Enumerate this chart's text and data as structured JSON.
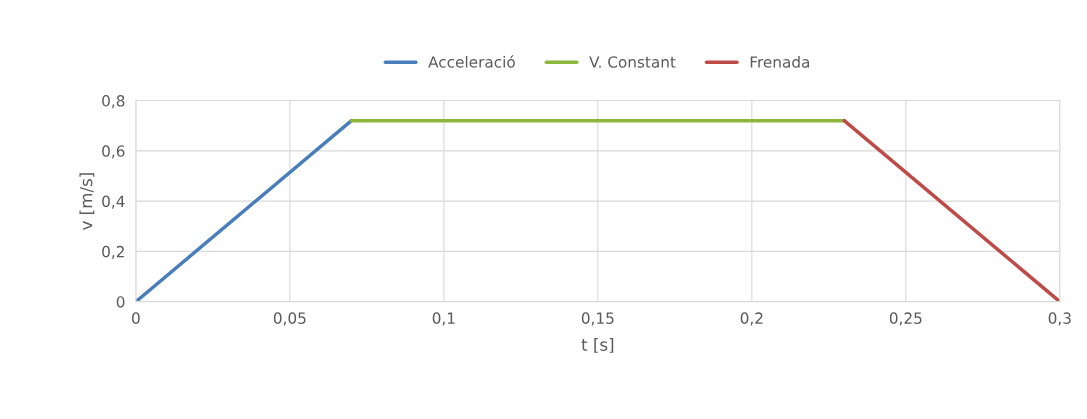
{
  "chart_data": {
    "type": "line",
    "xlabel": "t [s]",
    "ylabel": "v [m/s]",
    "series": [
      {
        "name": "Acceleració",
        "color": "#4a7ebb",
        "x": [
          0,
          0.07
        ],
        "values": [
          0,
          0.72
        ]
      },
      {
        "name": "V. Constant",
        "color": "#8db63c",
        "x": [
          0.07,
          0.23
        ],
        "values": [
          0.72,
          0.72
        ]
      },
      {
        "name": "Frenada",
        "color": "#be4b48",
        "x": [
          0.23,
          0.3
        ],
        "values": [
          0.72,
          0
        ]
      }
    ],
    "xlim": [
      0,
      0.3
    ],
    "ylim": [
      0,
      0.8
    ],
    "xticks": [
      0,
      {
        "value": 0.05,
        "label": "0,05"
      },
      {
        "value": 0.1,
        "label": "0,1"
      },
      {
        "value": 0.15,
        "label": "0,15"
      },
      {
        "value": 0.2,
        "label": "0,2"
      },
      {
        "value": 0.25,
        "label": "0,25"
      },
      {
        "value": 0.3,
        "label": "0,3"
      }
    ],
    "yticks": [
      0,
      {
        "value": 0.2,
        "label": "0,2"
      },
      {
        "value": 0.4,
        "label": "0,4"
      },
      {
        "value": 0.6,
        "label": "0,6"
      },
      {
        "value": 0.8,
        "label": "0,8"
      }
    ],
    "grid": true,
    "legend": "top",
    "marker": "none",
    "line_style": "solid"
  }
}
